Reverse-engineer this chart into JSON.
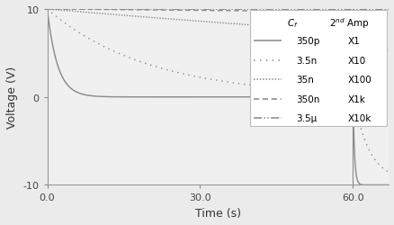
{
  "xlabel": "Time (s)",
  "ylabel": "Voltage (V)",
  "xlim": [
    0.0,
    67.0
  ],
  "ylim": [
    -10,
    10
  ],
  "xticks": [
    0.0,
    30.0,
    60.0
  ],
  "yticks": [
    -10,
    0,
    10
  ],
  "series": [
    {
      "label": "350p",
      "amp": "X1",
      "linestyle": "solid",
      "tau1": 2.0,
      "tau2": 0.3
    },
    {
      "label": "3.5n",
      "amp": "X10",
      "linestyle": "loosely_dotted",
      "tau1": 20.0,
      "tau2": 3.0
    },
    {
      "label": "35n",
      "amp": "X100",
      "linestyle": "densely_dotted",
      "tau1": 200.0,
      "tau2": 30.0
    },
    {
      "label": "350n",
      "amp": "X1k",
      "linestyle": "dashed",
      "tau1": 2000.0,
      "tau2": 300.0
    },
    {
      "label": "3.5μ",
      "amp": "X10k",
      "linestyle": "dashdotdotted",
      "tau1": 20000.0,
      "tau2": 3000.0
    }
  ],
  "t_switch": 60.0,
  "V0": 10.0,
  "t_end": 67.0,
  "gray": "#888888",
  "light_gray_bg": "#ebebeb",
  "axes_bg": "#f0f0f0"
}
